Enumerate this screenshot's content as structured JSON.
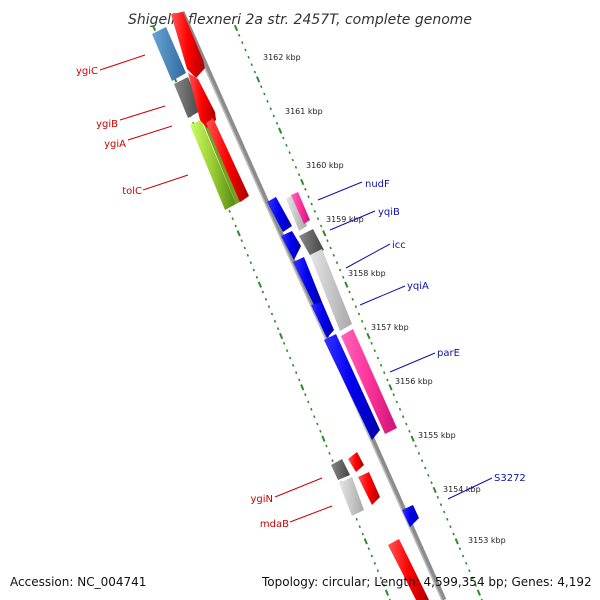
{
  "title": "Shigella flexneri 2a str. 2457T, complete genome",
  "footer": {
    "accession": "Accession: NC_004741",
    "summary": "Topology: circular; Length: 4,599,354 bp; Genes: 4,192"
  },
  "ticks": [
    "3162 kbp",
    "3161 kbp",
    "3160 kbp",
    "3159 kbp",
    "3158 kbp",
    "3157 kbp",
    "3156 kbp",
    "3155 kbp",
    "3154 kbp",
    "3153 kbp"
  ],
  "genes_left": [
    "ygiC",
    "ygiB",
    "ygiA",
    "tolC",
    "ygiN",
    "mdaB"
  ],
  "genes_right": [
    "nudF",
    "yqiB",
    "icc",
    "yqiA",
    "parE",
    "S3272"
  ],
  "colors": {
    "backbone": "#888888",
    "dotted_ring": "#2e8b2e",
    "forward": "#ff0000",
    "reverse": "#0000ee",
    "pink": "#ff3399",
    "steelblue": "#4a86b8",
    "green": "#99cc33",
    "darkgray": "#666666",
    "lightgray": "#c8c8c8",
    "left_label": "#cc0000",
    "right_label": "#1010aa"
  }
}
